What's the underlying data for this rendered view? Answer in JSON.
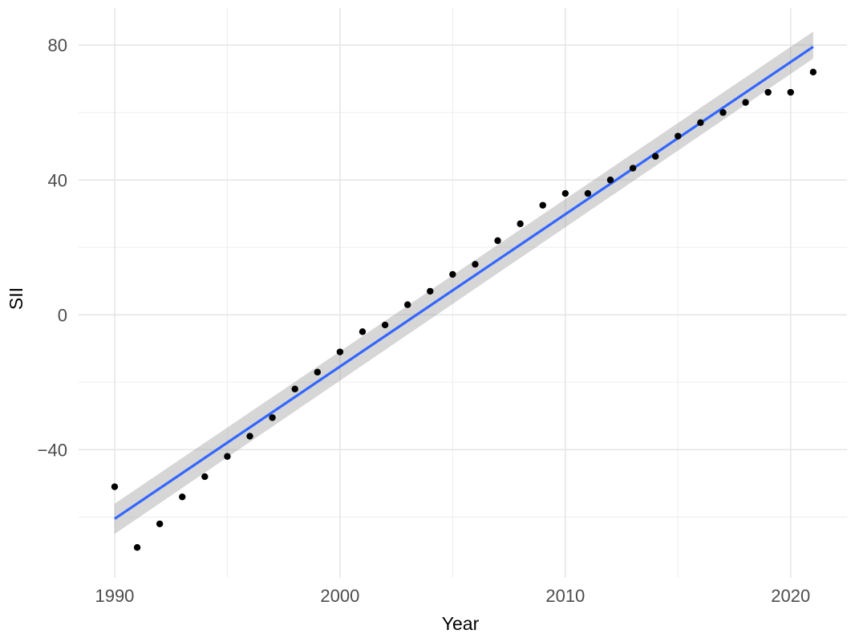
{
  "chart_data": {
    "type": "scatter",
    "title": "",
    "xlabel": "Year",
    "ylabel": "SII",
    "xlim": [
      1988.4,
      2022.5
    ],
    "ylim": [
      -78,
      91
    ],
    "x_ticks": [
      1990,
      2000,
      2010,
      2020
    ],
    "x_tick_labels": [
      "1990",
      "2000",
      "2010",
      "2020"
    ],
    "y_ticks": [
      -40,
      0,
      40,
      80
    ],
    "y_tick_labels": [
      "−40",
      "0",
      "40",
      "80"
    ],
    "grid": true,
    "legend": "none",
    "points": {
      "x": [
        1990,
        1991,
        1992,
        1993,
        1994,
        1995,
        1996,
        1997,
        1998,
        1999,
        2000,
        2001,
        2002,
        2003,
        2004,
        2005,
        2006,
        2007,
        2008,
        2009,
        2010,
        2011,
        2012,
        2013,
        2014,
        2015,
        2016,
        2017,
        2018,
        2019,
        2020,
        2021
      ],
      "y": [
        -51,
        -69,
        -62,
        -54,
        -48,
        -42,
        -36,
        -30.5,
        -22,
        -17,
        -11,
        -5,
        -3,
        3,
        7,
        12,
        15,
        22,
        27,
        32.5,
        36,
        36,
        40,
        43.5,
        47,
        53,
        57,
        60,
        63,
        66,
        66,
        72
      ]
    },
    "trend_line": {
      "method": "linear",
      "x": [
        1990,
        2021
      ],
      "y": [
        -60.5,
        79.5
      ],
      "ci_lower": [
        -65,
        76
      ],
      "ci_upper": [
        -56,
        84
      ]
    },
    "colors": {
      "points": "#000000",
      "trend_line": "#3366FF",
      "confidence_band": "#999999",
      "grid_major": "#e6e6e6",
      "grid_minor": "#f0f0f0"
    }
  }
}
